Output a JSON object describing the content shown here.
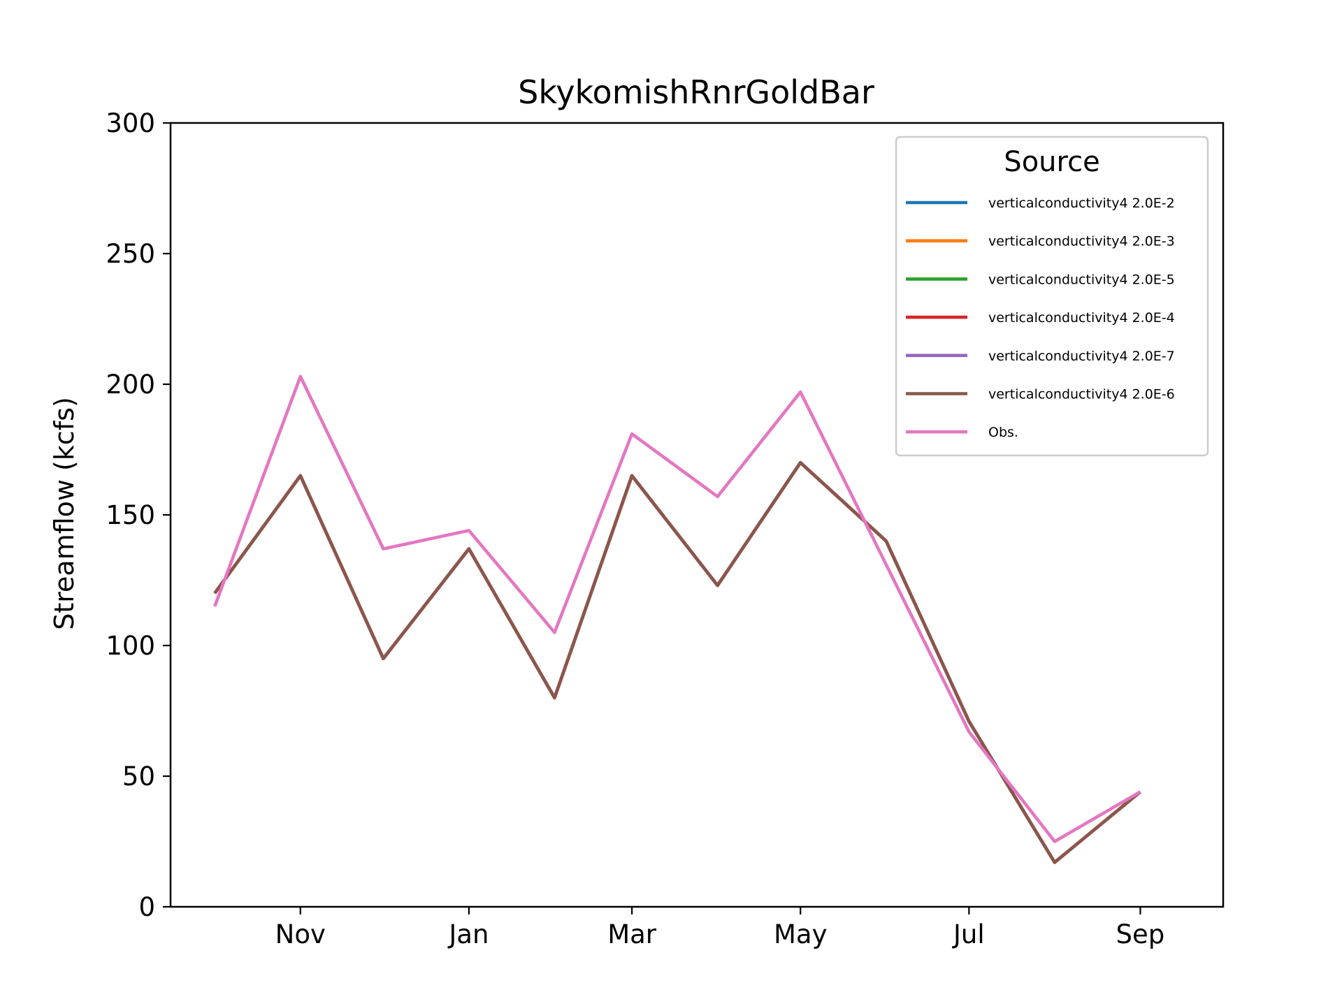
{
  "chart_data": {
    "type": "line",
    "title": "SkykomishRnrGoldBar",
    "xlabel": "",
    "ylabel": "Streamflow (kcfs)",
    "ylim": [
      0,
      300
    ],
    "yticks": [
      0,
      50,
      100,
      150,
      200,
      250,
      300
    ],
    "x": [
      "2000-10-01",
      "2000-11-01",
      "2000-12-01",
      "2001-01-01",
      "2001-02-01",
      "2001-03-01",
      "2001-04-01",
      "2001-05-01",
      "2001-06-01",
      "2001-07-01",
      "2001-08-01",
      "2001-09-01"
    ],
    "xlim": [
      "2000-09-15",
      "2001-10-01"
    ],
    "xticks": [
      {
        "date": "2000-11-01",
        "label": "Nov"
      },
      {
        "date": "2001-01-01",
        "label": "Jan"
      },
      {
        "date": "2001-03-01",
        "label": "Mar"
      },
      {
        "date": "2001-05-01",
        "label": "May"
      },
      {
        "date": "2001-07-01",
        "label": "Jul"
      },
      {
        "date": "2001-09-01",
        "label": "Sep"
      }
    ],
    "grid": false,
    "legend": {
      "title": "Source",
      "position": "top-right"
    },
    "series": [
      {
        "name": "verticalconductivity4 2.0E-2",
        "color": "#1f77b4",
        "values": [
          120,
          165,
          95,
          137,
          80,
          165,
          123,
          170,
          140,
          71,
          17,
          44
        ]
      },
      {
        "name": "verticalconductivity4 2.0E-3",
        "color": "#ff7f0e",
        "values": [
          120,
          165,
          95,
          137,
          80,
          165,
          123,
          170,
          140,
          71,
          17,
          44
        ]
      },
      {
        "name": "verticalconductivity4 2.0E-5",
        "color": "#2ca02c",
        "values": [
          120,
          165,
          95,
          137,
          80,
          165,
          123,
          170,
          140,
          71,
          17,
          44
        ]
      },
      {
        "name": "verticalconductivity4 2.0E-4",
        "color": "#d62728",
        "values": [
          120,
          165,
          95,
          137,
          80,
          165,
          123,
          170,
          140,
          71,
          17,
          44
        ]
      },
      {
        "name": "verticalconductivity4 2.0E-7",
        "color": "#9467bd",
        "values": [
          120,
          165,
          95,
          137,
          80,
          165,
          123,
          170,
          140,
          71,
          17,
          44
        ]
      },
      {
        "name": "verticalconductivity4 2.0E-6",
        "color": "#8c564b",
        "values": [
          120,
          165,
          95,
          137,
          80,
          165,
          123,
          170,
          140,
          71,
          17,
          44
        ]
      },
      {
        "name": "Obs.",
        "color": "#e377c2",
        "values": [
          115,
          203,
          137,
          144,
          105,
          181,
          157,
          197,
          131,
          67,
          25,
          44
        ]
      }
    ]
  }
}
